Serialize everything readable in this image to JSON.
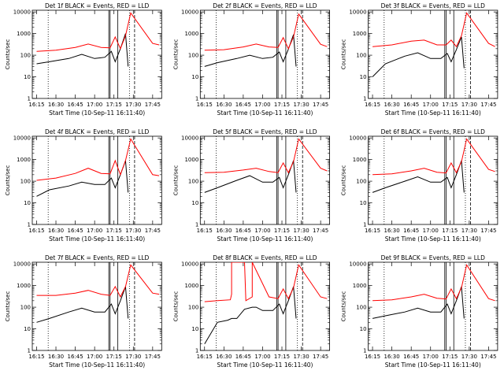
{
  "chart_data": [
    {
      "type": "line",
      "title": "Det 1f BLACK = Events, RED = LLD",
      "xlabel": "Start Time (10-Sep-11 16:11:40)",
      "ylabel": "Counts/sec",
      "x_ticks": [
        "16:15",
        "16:30",
        "16:45",
        "17:00",
        "17:15",
        "17:30",
        "17:45"
      ],
      "y_ticks": [
        "1",
        "10",
        "100",
        "1000",
        "10000"
      ],
      "xlim": [
        "16:11:40",
        "17:52"
      ],
      "ylim": [
        1,
        12000
      ],
      "y_scale": "log",
      "series": [
        {
          "color": "#000000",
          "x": [
            "16:15",
            "16:25",
            "16:40",
            "16:50",
            "17:00",
            "17:08",
            "17:13",
            "17:16",
            "17:20",
            "17:24",
            "17:26"
          ],
          "values": [
            40,
            50,
            70,
            110,
            70,
            80,
            150,
            50,
            200,
            1000,
            30
          ]
        },
        {
          "color": "#ff0000",
          "x": [
            "16:15",
            "16:30",
            "16:45",
            "16:55",
            "17:05",
            "17:12",
            "17:16",
            "17:20",
            "17:24",
            "17:28",
            "17:45",
            "17:50"
          ],
          "values": [
            150,
            170,
            230,
            330,
            230,
            220,
            700,
            200,
            800,
            9000,
            350,
            300
          ]
        }
      ],
      "vlines": [
        {
          "x": "16:24",
          "style": "dotted"
        },
        {
          "x": "17:11",
          "style": "solid"
        },
        {
          "x": "17:12",
          "style": "solid"
        },
        {
          "x": "17:18",
          "style": "solid"
        },
        {
          "x": "17:27",
          "style": "dotted"
        },
        {
          "x": "17:31",
          "style": "dashed"
        }
      ]
    },
    {
      "type": "line",
      "title": "Det 2f BLACK = Events, RED = LLD",
      "xlabel": "Start Time (10-Sep-11 16:11:40)",
      "ylabel": "Counts/sec",
      "x_ticks": [
        "16:15",
        "16:30",
        "16:45",
        "17:00",
        "17:15",
        "17:30",
        "17:45"
      ],
      "y_ticks": [
        "1",
        "10",
        "100",
        "1000",
        "10000"
      ],
      "xlim": [
        "16:11:40",
        "17:52"
      ],
      "ylim": [
        1,
        12000
      ],
      "y_scale": "log",
      "series": [
        {
          "color": "#000000",
          "x": [
            "16:15",
            "16:25",
            "16:40",
            "16:50",
            "17:00",
            "17:08",
            "17:13",
            "17:16",
            "17:20",
            "17:24",
            "17:26"
          ],
          "values": [
            30,
            45,
            70,
            100,
            70,
            80,
            140,
            50,
            190,
            900,
            30
          ]
        },
        {
          "color": "#ff0000",
          "x": [
            "16:15",
            "16:30",
            "16:45",
            "16:55",
            "17:05",
            "17:12",
            "17:16",
            "17:20",
            "17:24",
            "17:28",
            "17:45",
            "17:50"
          ],
          "values": [
            170,
            180,
            240,
            330,
            240,
            230,
            650,
            200,
            700,
            8000,
            320,
            250
          ]
        }
      ],
      "vlines": [
        {
          "x": "16:24",
          "style": "dotted"
        },
        {
          "x": "17:11",
          "style": "solid"
        },
        {
          "x": "17:12",
          "style": "solid"
        },
        {
          "x": "17:18",
          "style": "solid"
        },
        {
          "x": "17:27",
          "style": "dotted"
        },
        {
          "x": "17:31",
          "style": "dashed"
        }
      ]
    },
    {
      "type": "line",
      "title": "Det 3f BLACK = Events, RED = LLD",
      "xlabel": "Start Time (10-Sep-11 16:11:40)",
      "ylabel": "Counts/sec",
      "x_ticks": [
        "16:15",
        "16:30",
        "16:45",
        "17:00",
        "17:15",
        "17:30",
        "17:45"
      ],
      "y_ticks": [
        "1",
        "10",
        "100",
        "1000",
        "10000"
      ],
      "xlim": [
        "16:11:40",
        "17:52"
      ],
      "ylim": [
        1,
        12000
      ],
      "y_scale": "log",
      "series": [
        {
          "color": "#000000",
          "x": [
            "16:15",
            "16:25",
            "16:40",
            "16:50",
            "17:00",
            "17:08",
            "17:13",
            "17:16",
            "17:20",
            "17:24",
            "17:26"
          ],
          "values": [
            10,
            40,
            90,
            130,
            70,
            70,
            120,
            50,
            180,
            700,
            25
          ]
        },
        {
          "color": "#ff0000",
          "x": [
            "16:15",
            "16:30",
            "16:45",
            "16:55",
            "17:05",
            "17:12",
            "17:16",
            "17:20",
            "17:24",
            "17:28",
            "17:45",
            "17:50"
          ],
          "values": [
            250,
            300,
            450,
            500,
            300,
            300,
            500,
            250,
            800,
            9000,
            350,
            250
          ]
        }
      ],
      "vlines": [
        {
          "x": "16:24",
          "style": "dotted"
        },
        {
          "x": "17:11",
          "style": "solid"
        },
        {
          "x": "17:12",
          "style": "solid"
        },
        {
          "x": "17:18",
          "style": "solid"
        },
        {
          "x": "17:27",
          "style": "dotted"
        },
        {
          "x": "17:31",
          "style": "dashed"
        }
      ]
    },
    {
      "type": "line",
      "title": "Det 4f BLACK = Events, RED = LLD",
      "xlabel": "Start Time (10-Sep-11 16:11:40)",
      "ylabel": "Counts/sec",
      "x_ticks": [
        "16:15",
        "16:30",
        "16:45",
        "17:00",
        "17:15",
        "17:30",
        "17:45"
      ],
      "y_ticks": [
        "1",
        "10",
        "100",
        "1000",
        "10000"
      ],
      "xlim": [
        "16:11:40",
        "17:52"
      ],
      "ylim": [
        1,
        12000
      ],
      "y_scale": "log",
      "series": [
        {
          "color": "#000000",
          "x": [
            "16:15",
            "16:25",
            "16:40",
            "16:50",
            "17:00",
            "17:08",
            "17:13",
            "17:16",
            "17:20",
            "17:24",
            "17:26"
          ],
          "values": [
            20,
            40,
            60,
            90,
            70,
            70,
            140,
            50,
            200,
            900,
            30
          ]
        },
        {
          "color": "#ff0000",
          "x": [
            "16:15",
            "16:30",
            "16:45",
            "16:55",
            "17:05",
            "17:12",
            "17:16",
            "17:20",
            "17:24",
            "17:28",
            "17:45",
            "17:50"
          ],
          "values": [
            110,
            140,
            230,
            400,
            230,
            220,
            900,
            200,
            900,
            9000,
            200,
            180
          ]
        }
      ],
      "vlines": [
        {
          "x": "16:24",
          "style": "dotted"
        },
        {
          "x": "17:11",
          "style": "solid"
        },
        {
          "x": "17:12",
          "style": "solid"
        },
        {
          "x": "17:18",
          "style": "solid"
        },
        {
          "x": "17:27",
          "style": "dotted"
        },
        {
          "x": "17:31",
          "style": "dashed"
        }
      ]
    },
    {
      "type": "line",
      "title": "Det 5f BLACK = Events, RED = LLD",
      "xlabel": "Start Time (10-Sep-11 16:11:40)",
      "ylabel": "Counts/sec",
      "x_ticks": [
        "16:15",
        "16:30",
        "16:45",
        "17:00",
        "17:15",
        "17:30",
        "17:45"
      ],
      "y_ticks": [
        "1",
        "10",
        "100",
        "1000",
        "10000"
      ],
      "xlim": [
        "16:11:40",
        "17:52"
      ],
      "ylim": [
        1,
        12000
      ],
      "y_scale": "log",
      "series": [
        {
          "color": "#000000",
          "x": [
            "16:15",
            "16:25",
            "16:40",
            "16:50",
            "17:00",
            "17:08",
            "17:13",
            "17:16",
            "17:20",
            "17:24",
            "17:26"
          ],
          "values": [
            30,
            50,
            110,
            180,
            90,
            90,
            150,
            50,
            200,
            900,
            30
          ]
        },
        {
          "color": "#ff0000",
          "x": [
            "16:15",
            "16:30",
            "16:45",
            "16:55",
            "17:05",
            "17:12",
            "17:16",
            "17:20",
            "17:24",
            "17:28",
            "17:45",
            "17:50"
          ],
          "values": [
            250,
            260,
            330,
            400,
            280,
            250,
            700,
            250,
            800,
            9000,
            400,
            300
          ]
        }
      ],
      "vlines": [
        {
          "x": "16:24",
          "style": "dotted"
        },
        {
          "x": "17:11",
          "style": "solid"
        },
        {
          "x": "17:12",
          "style": "solid"
        },
        {
          "x": "17:18",
          "style": "solid"
        },
        {
          "x": "17:27",
          "style": "dotted"
        },
        {
          "x": "17:31",
          "style": "dashed"
        }
      ]
    },
    {
      "type": "line",
      "title": "Det 6f BLACK = Events, RED = LLD",
      "xlabel": "Start Time (10-Sep-11 16:11:40)",
      "ylabel": "Counts/sec",
      "x_ticks": [
        "16:15",
        "16:30",
        "16:45",
        "17:00",
        "17:15",
        "17:30",
        "17:45"
      ],
      "y_ticks": [
        "1",
        "10",
        "100",
        "1000",
        "10000"
      ],
      "xlim": [
        "16:11:40",
        "17:52"
      ],
      "ylim": [
        1,
        12000
      ],
      "y_scale": "log",
      "series": [
        {
          "color": "#000000",
          "x": [
            "16:15",
            "16:25",
            "16:40",
            "16:50",
            "17:00",
            "17:08",
            "17:13",
            "17:16",
            "17:20",
            "17:24",
            "17:26"
          ],
          "values": [
            30,
            50,
            100,
            160,
            90,
            90,
            150,
            50,
            200,
            900,
            30
          ]
        },
        {
          "color": "#ff0000",
          "x": [
            "16:15",
            "16:30",
            "16:45",
            "16:55",
            "17:05",
            "17:12",
            "17:16",
            "17:20",
            "17:24",
            "17:28",
            "17:45",
            "17:50"
          ],
          "values": [
            200,
            220,
            300,
            400,
            260,
            240,
            700,
            250,
            800,
            9000,
            350,
            280
          ]
        }
      ],
      "vlines": [
        {
          "x": "16:24",
          "style": "dotted"
        },
        {
          "x": "17:11",
          "style": "solid"
        },
        {
          "x": "17:12",
          "style": "solid"
        },
        {
          "x": "17:18",
          "style": "solid"
        },
        {
          "x": "17:27",
          "style": "dotted"
        },
        {
          "x": "17:31",
          "style": "dashed"
        }
      ]
    },
    {
      "type": "line",
      "title": "Det 7f BLACK = Events, RED = LLD",
      "xlabel": "Start Time (10-Sep-11 16:11:40)",
      "ylabel": "Counts/sec",
      "x_ticks": [
        "16:15",
        "16:30",
        "16:45",
        "17:00",
        "17:15",
        "17:30",
        "17:45"
      ],
      "y_ticks": [
        "1",
        "10",
        "100",
        "1000",
        "10000"
      ],
      "xlim": [
        "16:11:40",
        "17:52"
      ],
      "ylim": [
        1,
        12000
      ],
      "y_scale": "log",
      "series": [
        {
          "color": "#000000",
          "x": [
            "16:15",
            "16:25",
            "16:40",
            "16:50",
            "17:00",
            "17:08",
            "17:13",
            "17:16",
            "17:20",
            "17:24",
            "17:26"
          ],
          "values": [
            20,
            30,
            60,
            90,
            60,
            60,
            140,
            50,
            200,
            900,
            30
          ]
        },
        {
          "color": "#ff0000",
          "x": [
            "16:15",
            "16:30",
            "16:45",
            "16:55",
            "17:05",
            "17:12",
            "17:16",
            "17:20",
            "17:24",
            "17:28",
            "17:45",
            "17:50"
          ],
          "values": [
            350,
            350,
            450,
            600,
            400,
            350,
            900,
            300,
            900,
            9000,
            450,
            400
          ]
        }
      ],
      "vlines": [
        {
          "x": "16:24",
          "style": "dotted"
        },
        {
          "x": "17:11",
          "style": "solid"
        },
        {
          "x": "17:12",
          "style": "solid"
        },
        {
          "x": "17:18",
          "style": "solid"
        },
        {
          "x": "17:27",
          "style": "dotted"
        },
        {
          "x": "17:31",
          "style": "dashed"
        }
      ]
    },
    {
      "type": "line",
      "title": "Det 8f BLACK = Events, RED = LLD",
      "xlabel": "Start Time (10-Sep-11 16:11:40)",
      "ylabel": "Counts/sec",
      "x_ticks": [
        "16:15",
        "16:30",
        "16:45",
        "17:00",
        "17:15",
        "17:30",
        "17:45"
      ],
      "y_ticks": [
        "1",
        "10",
        "100",
        "1000",
        "10000"
      ],
      "xlim": [
        "16:11:40",
        "17:52"
      ],
      "ylim": [
        1,
        12000
      ],
      "y_scale": "log",
      "series": [
        {
          "color": "#000000",
          "x": [
            "16:15",
            "16:25",
            "16:33",
            "16:36",
            "16:40",
            "16:46",
            "16:52",
            "16:55",
            "17:00",
            "17:08",
            "17:13",
            "17:16",
            "17:20",
            "17:24",
            "17:26"
          ],
          "values": [
            2,
            20,
            25,
            30,
            30,
            80,
            100,
            100,
            70,
            70,
            140,
            50,
            200,
            900,
            30
          ]
        },
        {
          "color": "#ff0000",
          "x": [
            "16:15",
            "16:25",
            "16:35",
            "16:36",
            "16:36",
            "16:46",
            "16:47",
            "16:52",
            "16:52",
            "17:05",
            "17:12",
            "17:16",
            "17:20",
            "17:24",
            "17:28",
            "17:45",
            "17:50"
          ],
          "values": [
            180,
            200,
            220,
            400,
            12000,
            12000,
            200,
            300,
            12000,
            300,
            250,
            700,
            250,
            800,
            9000,
            300,
            250
          ]
        }
      ],
      "vlines": [
        {
          "x": "16:24",
          "style": "dotted"
        },
        {
          "x": "17:11",
          "style": "solid"
        },
        {
          "x": "17:12",
          "style": "solid"
        },
        {
          "x": "17:18",
          "style": "solid"
        },
        {
          "x": "17:27",
          "style": "dotted"
        },
        {
          "x": "17:31",
          "style": "dashed"
        }
      ]
    },
    {
      "type": "line",
      "title": "Det 9f BLACK = Events, RED = LLD",
      "xlabel": "Start Time (10-Sep-11 16:11:40)",
      "ylabel": "Counts/sec",
      "x_ticks": [
        "16:15",
        "16:30",
        "16:45",
        "17:00",
        "17:15",
        "17:30",
        "17:45"
      ],
      "y_ticks": [
        "1",
        "10",
        "100",
        "1000",
        "10000"
      ],
      "xlim": [
        "16:11:40",
        "17:52"
      ],
      "ylim": [
        1,
        12000
      ],
      "y_scale": "log",
      "series": [
        {
          "color": "#000000",
          "x": [
            "16:15",
            "16:25",
            "16:40",
            "16:50",
            "17:00",
            "17:08",
            "17:13",
            "17:16",
            "17:20",
            "17:24",
            "17:26"
          ],
          "values": [
            30,
            40,
            60,
            90,
            60,
            60,
            140,
            50,
            200,
            900,
            30
          ]
        },
        {
          "color": "#ff0000",
          "x": [
            "16:15",
            "16:30",
            "16:45",
            "16:55",
            "17:05",
            "17:12",
            "17:16",
            "17:20",
            "17:24",
            "17:28",
            "17:45",
            "17:50"
          ],
          "values": [
            200,
            220,
            300,
            400,
            260,
            240,
            700,
            250,
            800,
            9000,
            250,
            200
          ]
        }
      ],
      "vlines": [
        {
          "x": "16:24",
          "style": "dotted"
        },
        {
          "x": "17:11",
          "style": "solid"
        },
        {
          "x": "17:12",
          "style": "solid"
        },
        {
          "x": "17:18",
          "style": "solid"
        },
        {
          "x": "17:27",
          "style": "dotted"
        },
        {
          "x": "17:31",
          "style": "dashed"
        }
      ]
    }
  ]
}
